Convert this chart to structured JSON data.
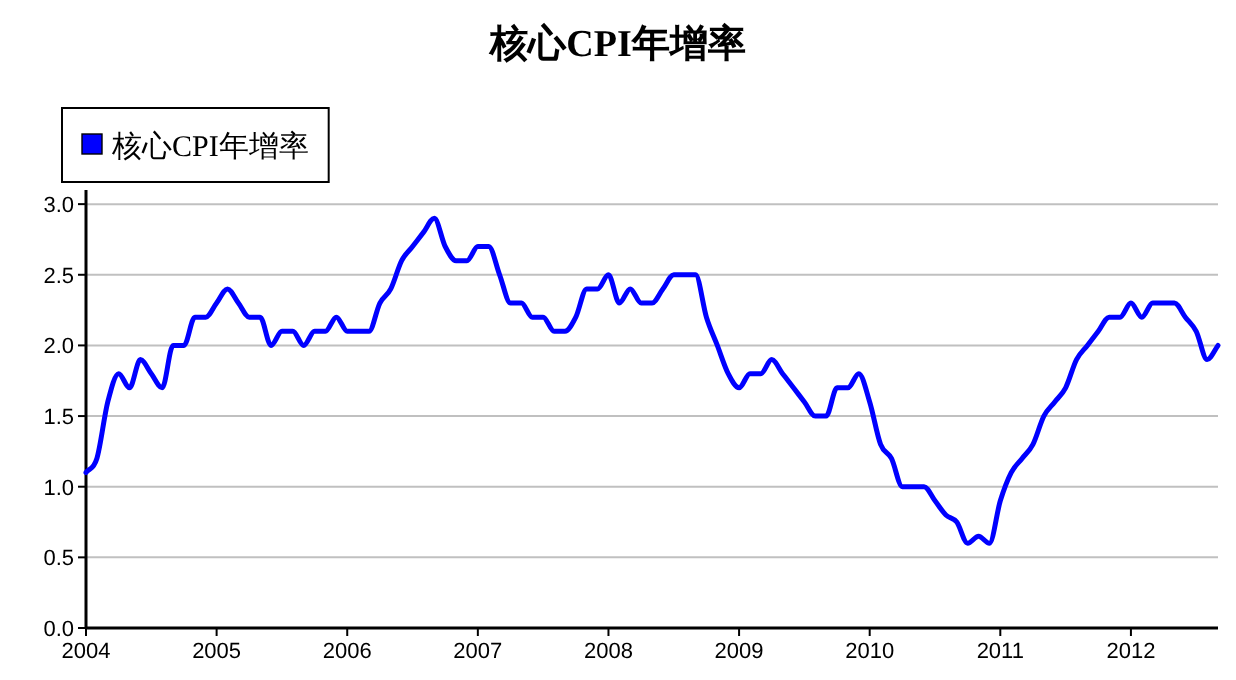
{
  "chart_data": {
    "type": "line",
    "title": "核心CPI年增率",
    "x": [
      "2004-01",
      "2004-02",
      "2004-03",
      "2004-04",
      "2004-05",
      "2004-06",
      "2004-07",
      "2004-08",
      "2004-09",
      "2004-10",
      "2004-11",
      "2004-12",
      "2005-01",
      "2005-02",
      "2005-03",
      "2005-04",
      "2005-05",
      "2005-06",
      "2005-07",
      "2005-08",
      "2005-09",
      "2005-10",
      "2005-11",
      "2005-12",
      "2006-01",
      "2006-02",
      "2006-03",
      "2006-04",
      "2006-05",
      "2006-06",
      "2006-07",
      "2006-08",
      "2006-09",
      "2006-10",
      "2006-11",
      "2006-12",
      "2007-01",
      "2007-02",
      "2007-03",
      "2007-04",
      "2007-05",
      "2007-06",
      "2007-07",
      "2007-08",
      "2007-09",
      "2007-10",
      "2007-11",
      "2007-12",
      "2008-01",
      "2008-02",
      "2008-03",
      "2008-04",
      "2008-05",
      "2008-06",
      "2008-07",
      "2008-08",
      "2008-09",
      "2008-10",
      "2008-11",
      "2008-12",
      "2009-01",
      "2009-02",
      "2009-03",
      "2009-04",
      "2009-05",
      "2009-06",
      "2009-07",
      "2009-08",
      "2009-09",
      "2009-10",
      "2009-11",
      "2009-12",
      "2010-01",
      "2010-02",
      "2010-03",
      "2010-04",
      "2010-05",
      "2010-06",
      "2010-07",
      "2010-08",
      "2010-09",
      "2010-10",
      "2010-11",
      "2010-12",
      "2011-01",
      "2011-02",
      "2011-03",
      "2011-04",
      "2011-05",
      "2011-06",
      "2011-07",
      "2011-08",
      "2011-09",
      "2011-10",
      "2011-11",
      "2011-12",
      "2012-01",
      "2012-02",
      "2012-03",
      "2012-04",
      "2012-05",
      "2012-06",
      "2012-07",
      "2012-08",
      "2012-09"
    ],
    "series": [
      {
        "name": "核心CPI年增率",
        "color": "#0000ff",
        "values": [
          1.1,
          1.2,
          1.6,
          1.8,
          1.7,
          1.9,
          1.8,
          1.7,
          2.0,
          2.0,
          2.2,
          2.2,
          2.3,
          2.4,
          2.3,
          2.2,
          2.2,
          2.0,
          2.1,
          2.1,
          2.0,
          2.1,
          2.1,
          2.2,
          2.1,
          2.1,
          2.1,
          2.3,
          2.4,
          2.6,
          2.7,
          2.8,
          2.9,
          2.7,
          2.6,
          2.6,
          2.7,
          2.7,
          2.5,
          2.3,
          2.3,
          2.2,
          2.2,
          2.1,
          2.1,
          2.2,
          2.4,
          2.4,
          2.5,
          2.3,
          2.4,
          2.3,
          2.3,
          2.4,
          2.5,
          2.5,
          2.5,
          2.2,
          2.0,
          1.8,
          1.7,
          1.8,
          1.8,
          1.9,
          1.8,
          1.7,
          1.6,
          1.5,
          1.5,
          1.7,
          1.7,
          1.8,
          1.6,
          1.3,
          1.2,
          1.0,
          1.0,
          1.0,
          0.9,
          0.8,
          0.75,
          0.6,
          0.65,
          0.6,
          0.9,
          1.1,
          1.2,
          1.3,
          1.5,
          1.6,
          1.7,
          1.9,
          2.0,
          2.1,
          2.2,
          2.2,
          2.3,
          2.2,
          2.3,
          2.3,
          2.3,
          2.2,
          2.1,
          1.9,
          2.0
        ]
      }
    ],
    "xlim": [
      "2004-01",
      "2012-09"
    ],
    "xticks": [
      "2004",
      "2005",
      "2006",
      "2007",
      "2008",
      "2009",
      "2010",
      "2011",
      "2012"
    ],
    "ylim": [
      0,
      3.1
    ],
    "yticks": [
      {
        "value": 0,
        "label": "0.0"
      },
      {
        "value": 0.5,
        "label": "0.5"
      },
      {
        "value": 1,
        "label": "1.0"
      },
      {
        "value": 1.5,
        "label": "1.5"
      },
      {
        "value": 2,
        "label": "2.0"
      },
      {
        "value": 2.5,
        "label": "2.5"
      },
      {
        "value": 3,
        "label": "3.0"
      }
    ],
    "grid": "y",
    "legend": "top left"
  }
}
